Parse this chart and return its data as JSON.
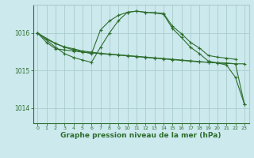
{
  "background_color": "#cce9ed",
  "grid_color": "#aacccc",
  "line_color": "#2d6e2d",
  "xlabel": "Graphe pression niveau de la mer (hPa)",
  "xlabel_fontsize": 6.5,
  "xticks": [
    0,
    1,
    2,
    3,
    4,
    5,
    6,
    7,
    8,
    9,
    10,
    11,
    12,
    13,
    14,
    15,
    16,
    17,
    18,
    19,
    20,
    21,
    22,
    23
  ],
  "yticks": [
    1014,
    1015,
    1016
  ],
  "ylim": [
    1013.6,
    1016.75
  ],
  "xlim": [
    -0.5,
    23.5
  ],
  "s1_x": [
    0,
    1,
    2,
    3,
    4,
    5,
    6,
    7,
    8,
    9,
    10,
    11,
    12,
    13,
    14,
    15,
    16,
    17,
    18,
    19,
    20,
    21,
    22,
    23
  ],
  "s1_y": [
    1016.0,
    1015.83,
    1015.72,
    1015.63,
    1015.58,
    1015.52,
    1015.49,
    1015.46,
    1015.44,
    1015.42,
    1015.4,
    1015.38,
    1015.36,
    1015.34,
    1015.32,
    1015.3,
    1015.28,
    1015.26,
    1015.24,
    1015.22,
    1015.2,
    1015.19,
    1015.18,
    1014.1
  ],
  "s2_x": [
    0,
    1,
    2,
    3,
    4,
    5,
    6,
    7,
    8,
    9,
    10,
    11,
    12,
    13,
    14,
    15,
    16,
    17,
    18,
    19,
    20,
    21,
    22,
    23
  ],
  "s2_y": [
    1016.0,
    1015.75,
    1015.58,
    1015.55,
    1015.52,
    1015.49,
    1015.47,
    1015.45,
    1015.43,
    1015.41,
    1015.39,
    1015.37,
    1015.35,
    1015.33,
    1015.31,
    1015.29,
    1015.27,
    1015.25,
    1015.23,
    1015.22,
    1015.21,
    1015.2,
    1015.18,
    1015.18
  ],
  "s3_x": [
    0,
    2,
    3,
    4,
    5,
    6,
    7,
    8,
    9,
    10,
    11,
    12,
    13,
    14,
    15,
    16,
    17,
    18,
    19,
    20,
    21,
    22
  ],
  "s3_y": [
    1016.0,
    1015.72,
    1015.62,
    1015.55,
    1015.5,
    1015.45,
    1016.08,
    1016.32,
    1016.47,
    1016.55,
    1016.58,
    1016.55,
    1016.54,
    1016.52,
    1016.18,
    1015.98,
    1015.75,
    1015.6,
    1015.4,
    1015.36,
    1015.33,
    1015.3
  ],
  "s4_x": [
    0,
    2,
    3,
    4,
    5,
    6,
    7,
    8,
    9,
    10,
    11,
    12,
    13,
    14,
    15,
    16,
    17,
    18,
    19,
    20,
    21,
    22,
    23
  ],
  "s4_y": [
    1016.0,
    1015.62,
    1015.45,
    1015.35,
    1015.28,
    1015.22,
    1015.62,
    1016.0,
    1016.33,
    1016.55,
    1016.58,
    1016.55,
    1016.53,
    1016.5,
    1016.12,
    1015.88,
    1015.62,
    1015.45,
    1015.25,
    1015.2,
    1015.15,
    1014.82,
    1014.1
  ]
}
